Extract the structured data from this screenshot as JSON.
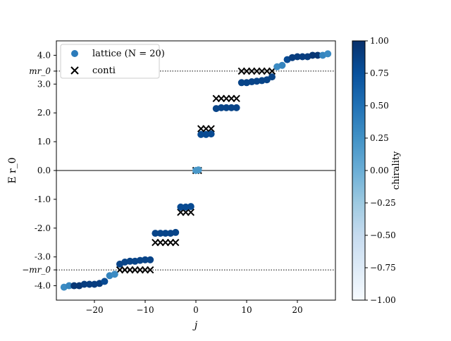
{
  "chart_data": {
    "type": "scatter",
    "xlabel": "j",
    "ylabel": "E r_0",
    "xlim": [
      -27.5,
      27.5
    ],
    "ylim": [
      -4.5,
      4.5
    ],
    "xticks": [
      -20,
      -10,
      0,
      10,
      20
    ],
    "xtick_labels": [
      "−20",
      "−10",
      "0",
      "10",
      "20"
    ],
    "yticks": [
      4.0,
      3.0,
      2.0,
      1.0,
      0.0,
      -1.0,
      -2.0,
      -3.0,
      -4.0
    ],
    "ytick_labels": [
      "4.0",
      "3.0",
      "2.0",
      "1.0",
      "0.0",
      "-1.0",
      "-2.0",
      "-3.0",
      "-4.0"
    ],
    "mass_ticks": [
      {
        "y": 3.45,
        "label": "mr_0"
      },
      {
        "y": -3.45,
        "label": "−mr_0"
      }
    ],
    "reference_lines": [
      {
        "y": 0.0,
        "style": "solid"
      },
      {
        "y": 3.45,
        "style": "dotted"
      },
      {
        "y": -3.45,
        "style": "dotted"
      }
    ],
    "legend": {
      "position": "top-left",
      "entries": [
        {
          "marker": "circle",
          "label": "lattice (N = 20)"
        },
        {
          "marker": "x",
          "label": "conti"
        }
      ]
    },
    "colorbar": {
      "label": "chirality",
      "range": [
        -1.0,
        1.0
      ],
      "ticks": [
        1.0,
        0.75,
        0.5,
        0.25,
        0.0,
        -0.25,
        -0.5,
        -0.75,
        -1.0
      ],
      "tick_labels": [
        "1.00",
        "0.75",
        "0.50",
        "0.25",
        "0.00",
        "−0.25",
        "−0.50",
        "−0.75",
        "−1.00"
      ]
    },
    "series": [
      {
        "name": "lattice (N = 20)",
        "marker": "circle",
        "points": [
          {
            "x": -26,
            "y": -4.05,
            "c": 0.3
          },
          {
            "x": -25,
            "y": -4.0,
            "c": 0.35
          },
          {
            "x": -24,
            "y": -4.0,
            "c": 0.95
          },
          {
            "x": -23,
            "y": -4.0,
            "c": 0.95
          },
          {
            "x": -22,
            "y": -3.95,
            "c": 0.9
          },
          {
            "x": -21,
            "y": -3.95,
            "c": 0.9
          },
          {
            "x": -20,
            "y": -3.95,
            "c": 0.9
          },
          {
            "x": -19,
            "y": -3.92,
            "c": 0.9
          },
          {
            "x": -18,
            "y": -3.85,
            "c": 0.8
          },
          {
            "x": -17,
            "y": -3.65,
            "c": 0.35
          },
          {
            "x": -16,
            "y": -3.6,
            "c": 0.3
          },
          {
            "x": -15,
            "y": -3.25,
            "c": 0.85
          },
          {
            "x": -14,
            "y": -3.18,
            "c": 0.85
          },
          {
            "x": -13,
            "y": -3.15,
            "c": 0.85
          },
          {
            "x": -12,
            "y": -3.15,
            "c": 0.85
          },
          {
            "x": -11,
            "y": -3.12,
            "c": 0.85
          },
          {
            "x": -10,
            "y": -3.1,
            "c": 0.85
          },
          {
            "x": -9,
            "y": -3.1,
            "c": 0.85
          },
          {
            "x": -8,
            "y": -2.18,
            "c": 0.85
          },
          {
            "x": -7,
            "y": -2.18,
            "c": 0.85
          },
          {
            "x": -6,
            "y": -2.18,
            "c": 0.85
          },
          {
            "x": -5,
            "y": -2.18,
            "c": 0.85
          },
          {
            "x": -4,
            "y": -2.15,
            "c": 0.85
          },
          {
            "x": -3,
            "y": -1.27,
            "c": 0.8
          },
          {
            "x": -2,
            "y": -1.27,
            "c": 0.8
          },
          {
            "x": -1,
            "y": -1.25,
            "c": 0.8
          },
          {
            "x": 0,
            "y": 0.0,
            "c": 0.2
          },
          {
            "x": 0.5,
            "y": 0.02,
            "c": 0.2
          },
          {
            "x": 1,
            "y": 1.25,
            "c": 0.8
          },
          {
            "x": 2,
            "y": 1.25,
            "c": 0.8
          },
          {
            "x": 3,
            "y": 1.27,
            "c": 0.8
          },
          {
            "x": 4,
            "y": 2.15,
            "c": 0.85
          },
          {
            "x": 5,
            "y": 2.18,
            "c": 0.85
          },
          {
            "x": 6,
            "y": 2.18,
            "c": 0.85
          },
          {
            "x": 7,
            "y": 2.18,
            "c": 0.85
          },
          {
            "x": 8,
            "y": 2.18,
            "c": 0.85
          },
          {
            "x": 9,
            "y": 3.05,
            "c": 0.85
          },
          {
            "x": 10,
            "y": 3.05,
            "c": 0.85
          },
          {
            "x": 11,
            "y": 3.08,
            "c": 0.85
          },
          {
            "x": 12,
            "y": 3.1,
            "c": 0.85
          },
          {
            "x": 13,
            "y": 3.12,
            "c": 0.85
          },
          {
            "x": 14,
            "y": 3.15,
            "c": 0.85
          },
          {
            "x": 15,
            "y": 3.25,
            "c": 0.85
          },
          {
            "x": 16,
            "y": 3.6,
            "c": 0.3
          },
          {
            "x": 17,
            "y": 3.65,
            "c": 0.35
          },
          {
            "x": 18,
            "y": 3.85,
            "c": 0.8
          },
          {
            "x": 19,
            "y": 3.92,
            "c": 0.9
          },
          {
            "x": 20,
            "y": 3.95,
            "c": 0.9
          },
          {
            "x": 21,
            "y": 3.95,
            "c": 0.9
          },
          {
            "x": 22,
            "y": 3.95,
            "c": 0.9
          },
          {
            "x": 23,
            "y": 4.0,
            "c": 0.95
          },
          {
            "x": 24,
            "y": 4.0,
            "c": 0.95
          },
          {
            "x": 25,
            "y": 4.0,
            "c": 0.35
          },
          {
            "x": 26,
            "y": 4.05,
            "c": 0.3
          }
        ]
      },
      {
        "name": "conti",
        "marker": "x",
        "points": [
          {
            "x": -15,
            "y": -3.45
          },
          {
            "x": -14,
            "y": -3.45
          },
          {
            "x": -13,
            "y": -3.45
          },
          {
            "x": -12,
            "y": -3.45
          },
          {
            "x": -11,
            "y": -3.45
          },
          {
            "x": -10,
            "y": -3.45
          },
          {
            "x": -9,
            "y": -3.45
          },
          {
            "x": -8,
            "y": -2.5
          },
          {
            "x": -7,
            "y": -2.5
          },
          {
            "x": -6,
            "y": -2.5
          },
          {
            "x": -5,
            "y": -2.5
          },
          {
            "x": -4,
            "y": -2.5
          },
          {
            "x": -3,
            "y": -1.45
          },
          {
            "x": -2,
            "y": -1.45
          },
          {
            "x": -1,
            "y": -1.45
          },
          {
            "x": 0,
            "y": 0.0
          },
          {
            "x": 0.5,
            "y": 0.0
          },
          {
            "x": 1,
            "y": 1.45
          },
          {
            "x": 2,
            "y": 1.45
          },
          {
            "x": 3,
            "y": 1.45
          },
          {
            "x": 4,
            "y": 2.5
          },
          {
            "x": 5,
            "y": 2.5
          },
          {
            "x": 6,
            "y": 2.5
          },
          {
            "x": 7,
            "y": 2.5
          },
          {
            "x": 8,
            "y": 2.5
          },
          {
            "x": 9,
            "y": 3.45
          },
          {
            "x": 10,
            "y": 3.45
          },
          {
            "x": 11,
            "y": 3.45
          },
          {
            "x": 12,
            "y": 3.45
          },
          {
            "x": 13,
            "y": 3.45
          },
          {
            "x": 14,
            "y": 3.45
          },
          {
            "x": 15,
            "y": 3.45
          }
        ]
      }
    ],
    "colors": {
      "colormap": "Blues",
      "cmap_low": "#f7fbff",
      "cmap_high": "#08306b",
      "legend_dot": "#2b7bba",
      "x_marker": "#000000"
    }
  }
}
